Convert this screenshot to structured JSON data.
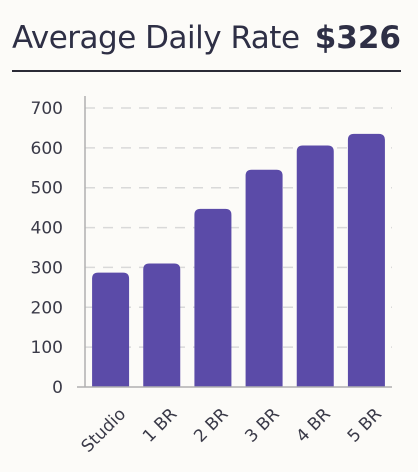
{
  "header": {
    "title": "Average Daily Rate",
    "metric": "$326"
  },
  "colors": {
    "bar": "#5b4ba8",
    "grid": "#d9d9d9",
    "axis": "#b0b0b0"
  },
  "chart_data": {
    "type": "bar",
    "categories": [
      "Studio",
      "1 BR",
      "2 BR",
      "3 BR",
      "4 BR",
      "5 BR"
    ],
    "values": [
      287,
      310,
      447,
      545,
      606,
      635
    ],
    "ylim": [
      0,
      700
    ],
    "yticks": [
      0,
      100,
      200,
      300,
      400,
      500,
      600,
      700
    ],
    "grid": true
  }
}
